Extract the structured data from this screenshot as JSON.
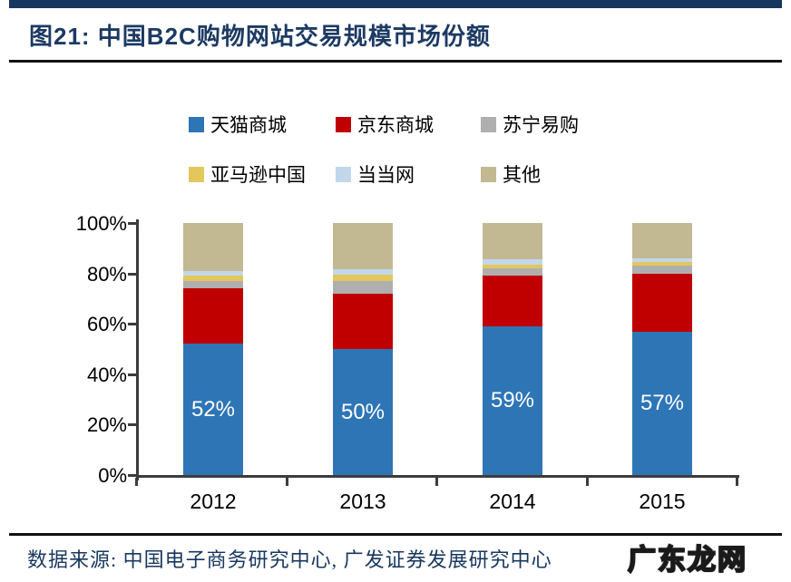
{
  "header": {
    "title": "图21:  中国B2C购物网站交易规模市场份额"
  },
  "colors": {
    "accent_navy": "#17375E",
    "axis": "#3C3C3C",
    "bar_label_text": "#FFFFFF"
  },
  "chart_data": {
    "type": "bar",
    "stacked": true,
    "title": "中国B2C购物网站交易规模市场份额",
    "categories": [
      "2012",
      "2013",
      "2014",
      "2015"
    ],
    "series": [
      {
        "name": "天猫商城",
        "color": "#2E75B6",
        "values": [
          52,
          50,
          59,
          57
        ]
      },
      {
        "name": "京东商城",
        "color": "#C00000",
        "values": [
          22,
          22,
          20,
          23
        ]
      },
      {
        "name": "苏宁易购",
        "color": "#AFAFAF",
        "values": [
          3,
          5,
          3,
          3
        ]
      },
      {
        "name": "亚马逊中国",
        "color": "#E3C75C",
        "values": [
          2,
          2.5,
          1.5,
          1.5
        ]
      },
      {
        "name": "当当网",
        "color": "#C3D7EC",
        "values": [
          2,
          2,
          2,
          1.5
        ]
      },
      {
        "name": "其他",
        "color": "#C2B993",
        "values": [
          19,
          18.5,
          14.5,
          14
        ]
      }
    ],
    "bar_labels": {
      "series": "天猫商城",
      "values": [
        "52%",
        "50%",
        "59%",
        "57%"
      ]
    },
    "xlabel": "",
    "ylabel": "",
    "yaxis": {
      "ticks": [
        "0%",
        "20%",
        "40%",
        "60%",
        "80%",
        "100%"
      ],
      "min": 0,
      "max": 100
    },
    "grid": false,
    "legend_position": "top",
    "legend_rows": [
      [
        0,
        1,
        2
      ],
      [
        3,
        4,
        5
      ]
    ]
  },
  "footer": {
    "source": "数据来源: 中国电子商务研究中心, 广发证券发展研究中心",
    "watermark": "广东龙网"
  }
}
